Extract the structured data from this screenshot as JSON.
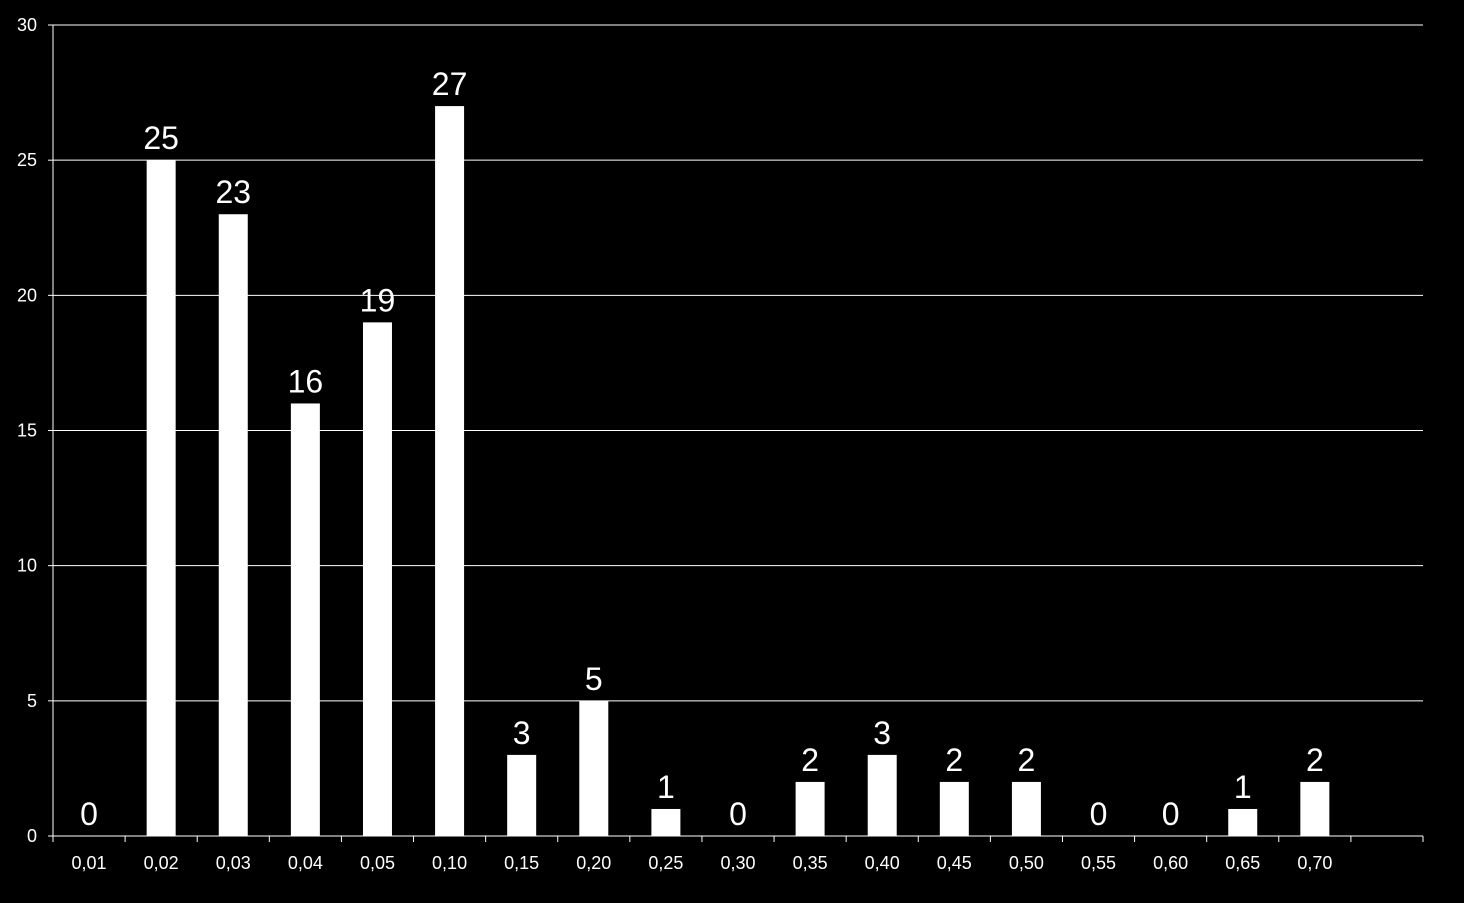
{
  "chart_data": {
    "type": "bar",
    "categories": [
      "0,01",
      "0,02",
      "0,03",
      "0,04",
      "0,05",
      "0,10",
      "0,15",
      "0,20",
      "0,25",
      "0,30",
      "0,35",
      "0,40",
      "0,45",
      "0,50",
      "0,55",
      "0,60",
      "0,65",
      "0,70"
    ],
    "values": [
      0,
      25,
      23,
      16,
      19,
      27,
      3,
      5,
      1,
      0,
      2,
      3,
      2,
      2,
      0,
      0,
      1,
      2
    ],
    "title": "",
    "xlabel": "",
    "ylabel": "",
    "ylim": [
      0,
      30
    ],
    "yticks": [
      0,
      5,
      10,
      15,
      20,
      25,
      30
    ],
    "grid": true,
    "data_labels": true,
    "colors": {
      "background": "#000000",
      "bar": "#ffffff",
      "grid": "#ffffff",
      "text": "#ffffff"
    }
  }
}
